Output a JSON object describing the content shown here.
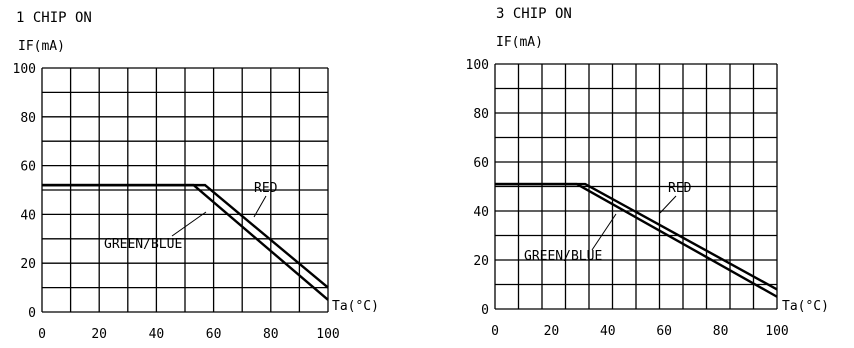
{
  "chart_data": [
    {
      "type": "line",
      "title": "1 CHIP ON",
      "ylabel": "IF(mA)",
      "xlabel": "Ta(°C)",
      "xlim": [
        0,
        100
      ],
      "ylim": [
        0,
        100
      ],
      "xticks": [
        "0",
        "20",
        "40",
        "60",
        "80",
        "100"
      ],
      "yticks": [
        "0",
        "20",
        "40",
        "60",
        "80",
        "100"
      ],
      "grid": true,
      "series": [
        {
          "name": "RED",
          "x": [
            0,
            57,
            100
          ],
          "y": [
            52,
            52,
            10
          ]
        },
        {
          "name": "GREEN/BLUE",
          "x": [
            0,
            53,
            100
          ],
          "y": [
            52,
            52,
            5
          ]
        }
      ]
    },
    {
      "type": "line",
      "title": "3 CHIP ON",
      "ylabel": "IF(mA)",
      "xlabel": "Ta(°C)",
      "xlim": [
        0,
        100
      ],
      "ylim": [
        0,
        100
      ],
      "xticks": [
        "0",
        "20",
        "40",
        "60",
        "80",
        "100"
      ],
      "yticks": [
        "0",
        "20",
        "40",
        "60",
        "80",
        "100"
      ],
      "grid": true,
      "series": [
        {
          "name": "RED",
          "x": [
            0,
            32,
            100
          ],
          "y": [
            51,
            51,
            8
          ]
        },
        {
          "name": "GREEN/BLUE",
          "x": [
            0,
            29,
            100
          ],
          "y": [
            51,
            51,
            5
          ]
        }
      ]
    }
  ]
}
